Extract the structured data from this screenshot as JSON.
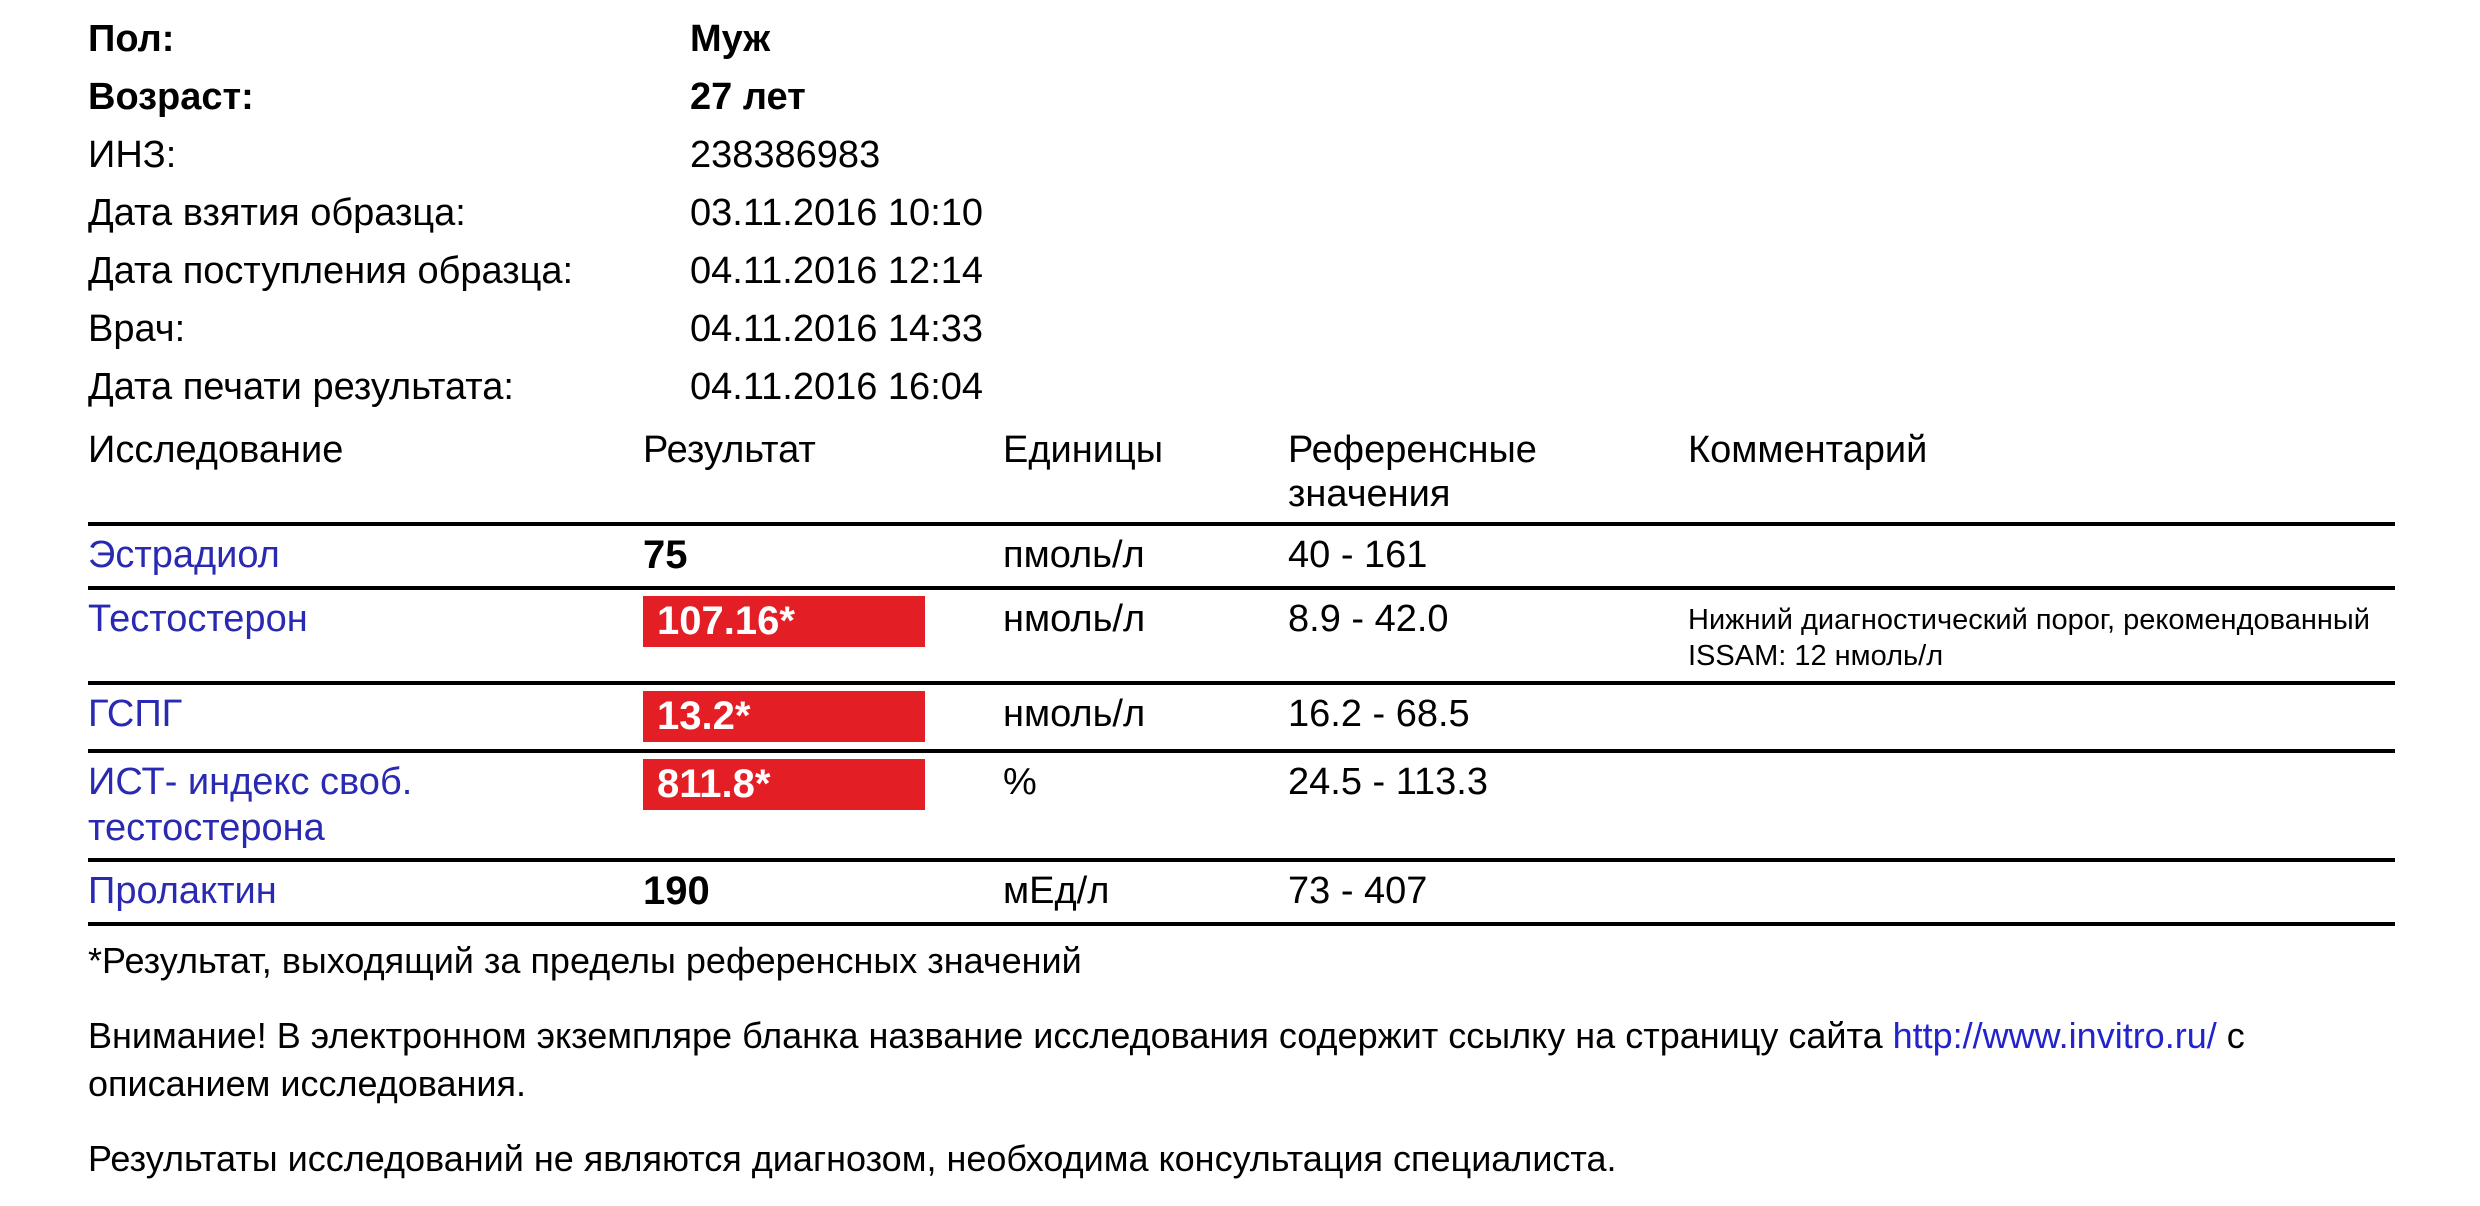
{
  "patient": {
    "rows": [
      {
        "label": "Пол:",
        "value": "Муж"
      },
      {
        "label": "Возраст:",
        "value": "27 лет"
      },
      {
        "label": "ИНЗ:",
        "value": "238386983"
      },
      {
        "label": "Дата взятия образца:",
        "value": "03.11.2016 10:10"
      },
      {
        "label": "Дата поступления образца:",
        "value": "04.11.2016 12:14"
      },
      {
        "label": "Врач:",
        "value": "04.11.2016 14:33"
      },
      {
        "label": "Дата печати результата:",
        "value": "04.11.2016 16:04"
      }
    ]
  },
  "table": {
    "headers": {
      "name": "Исследование",
      "result": "Результат",
      "units": "Единицы",
      "reference": "Референсные значения",
      "comment": "Комментарий"
    },
    "rows": [
      {
        "name": "Эстрадиол",
        "result": "75",
        "flagged": false,
        "units": "пмоль/л",
        "reference": "40 - 161",
        "comment": ""
      },
      {
        "name": "Тестостерон",
        "result": "107.16*",
        "flagged": true,
        "units": "нмоль/л",
        "reference": "8.9 - 42.0",
        "comment": "Нижний диагностический порог, рекомендованный ISSAM: 12 нмоль/л"
      },
      {
        "name": "ГСПГ",
        "result": "13.2*",
        "flagged": true,
        "units": "нмоль/л",
        "reference": "16.2 - 68.5",
        "comment": ""
      },
      {
        "name": "ИСТ- индекс своб. тестостерона",
        "result": "811.8*",
        "flagged": true,
        "units": "%",
        "reference": "24.5 - 113.3",
        "comment": ""
      },
      {
        "name": "Пролактин",
        "result": "190",
        "flagged": false,
        "units": "мЕд/л",
        "reference": "73 - 407",
        "comment": ""
      }
    ]
  },
  "footnotes": {
    "asterisk": "*Результат, выходящий за пределы референсных значений",
    "attention_before": "Внимание! В электронном экземпляре бланка название исследования содержит ссылку на страницу сайта",
    "link": "http://www.invitro.ru/",
    "attention_after": "с описанием исследования.",
    "disclaimer": "Результаты исследований не являются диагнозом, необходима консультация специалиста."
  },
  "colors": {
    "flag_red": "#e31e24",
    "link_blue": "#2929b2",
    "url_blue": "#2323cc"
  }
}
